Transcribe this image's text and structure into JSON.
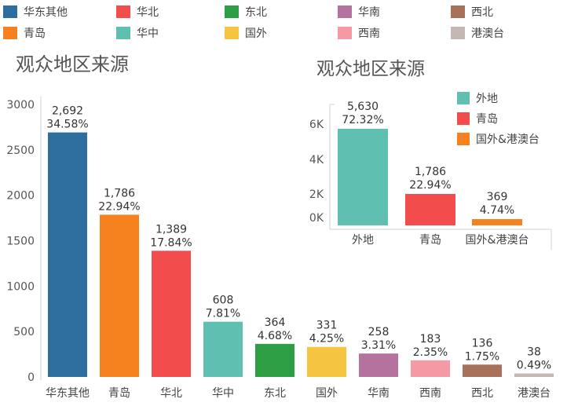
{
  "legend": [
    {
      "label": "华东其他",
      "color": "#2e6e9e"
    },
    {
      "label": "华北",
      "color": "#f24c4c"
    },
    {
      "label": "东北",
      "color": "#2e9e44"
    },
    {
      "label": "华南",
      "color": "#b6729e"
    },
    {
      "label": "西北",
      "color": "#a8725a"
    },
    {
      "label": "青岛",
      "color": "#f5821f"
    },
    {
      "label": "华中",
      "color": "#5fbfb0"
    },
    {
      "label": "国外",
      "color": "#f5c542"
    },
    {
      "label": "西南",
      "color": "#f59aa5"
    },
    {
      "label": "港澳台",
      "color": "#c4b8b4"
    }
  ],
  "chart_data": [
    {
      "type": "bar",
      "title": "观众地区来源",
      "categories": [
        "华东其他",
        "青岛",
        "华北",
        "华中",
        "东北",
        "国外",
        "华南",
        "西南",
        "西北",
        "港澳台"
      ],
      "values": [
        2692,
        1786,
        1389,
        608,
        364,
        331,
        258,
        183,
        136,
        38
      ],
      "value_labels": [
        "2,692",
        "1,786",
        "1,389",
        "608",
        "364",
        "331",
        "258",
        "183",
        "136",
        "38"
      ],
      "percent_labels": [
        "34.58%",
        "22.94%",
        "17.84%",
        "7.81%",
        "4.68%",
        "4.25%",
        "3.31%",
        "2.35%",
        "1.75%",
        "0.49%"
      ],
      "colors": [
        "#2e6e9e",
        "#f5821f",
        "#f24c4c",
        "#5fbfb0",
        "#2e9e44",
        "#f5c542",
        "#b6729e",
        "#f59aa5",
        "#a8725a",
        "#c4b8b4"
      ],
      "yticks": [
        0,
        500,
        1000,
        1500,
        2000,
        2500,
        3000
      ],
      "ylim": [
        0,
        3000
      ]
    },
    {
      "type": "bar",
      "title": "观众地区来源",
      "categories": [
        "外地",
        "青岛",
        "国外&港澳台"
      ],
      "values": [
        5630,
        1786,
        369
      ],
      "value_labels": [
        "5,630",
        "1,786",
        "369"
      ],
      "percent_labels": [
        "72.32%",
        "22.94%",
        "4.74%"
      ],
      "colors": [
        "#5fbfb0",
        "#f24c4c",
        "#f5821f"
      ],
      "yticks": [
        0,
        2000,
        4000,
        6000
      ],
      "ytick_labels": [
        "0K",
        "2K",
        "4K",
        "6K"
      ],
      "legend": [
        {
          "label": "外地",
          "color": "#5fbfb0"
        },
        {
          "label": "青岛",
          "color": "#f24c4c"
        },
        {
          "label": "国外&港澳台",
          "color": "#f5821f"
        }
      ]
    }
  ]
}
